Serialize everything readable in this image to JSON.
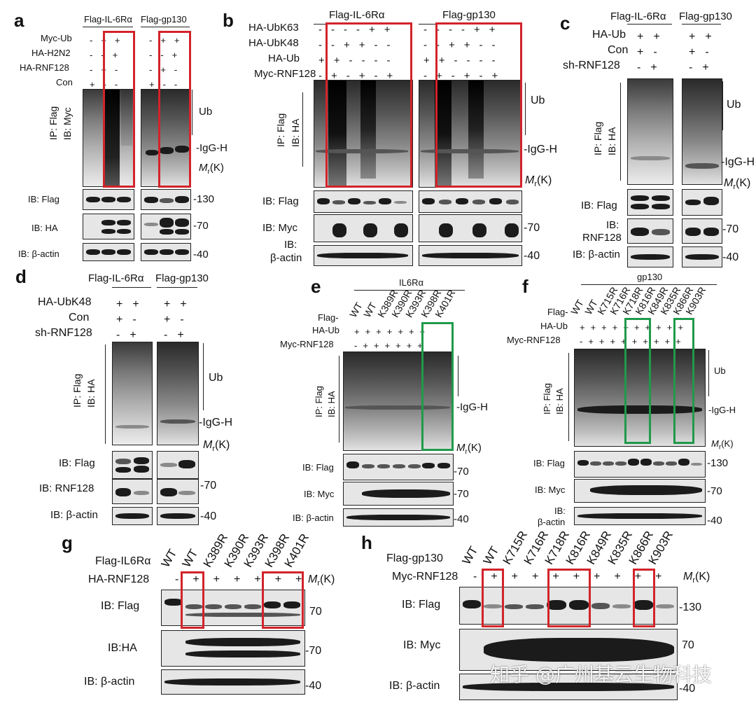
{
  "panels": {
    "a": "a",
    "b": "b",
    "c": "c",
    "d": "d",
    "e": "e",
    "f": "f",
    "g": "g",
    "h": "h"
  },
  "common": {
    "flag_il6ra": "Flag-IL-6Rα",
    "flag_gp130": "Flag-gp130",
    "ub": "Ub",
    "igg": "-IgG-H",
    "mr": "M",
    "mr_sub": "r",
    "mr_k": "(K)",
    "ip": "IP:",
    "ip_flag": "Flag",
    "ib": "IB:",
    "ib_myc": "Myc",
    "ib_ha": "HA",
    "ib_flag": "IB:  Flag",
    "ib_ha_row": "IB:  HA",
    "ib_actin": "IB:  β-actin",
    "ib_myc_row": "IB:  Myc",
    "ib_rnf128": "IB:  RNF128",
    "ib_actin_split1": "IB:",
    "ib_actin_split2": "β-actin",
    "ib_rnf_split1": "IB:",
    "ib_rnf_split2": "RNF128",
    "m130": "-130",
    "m70": "-70",
    "m40": "-40",
    "plus": "+",
    "minus": "-"
  },
  "a": {
    "rows": [
      "Myc-Ub",
      "HA-H2N2",
      "HA-RNF128",
      "Con"
    ]
  },
  "b": {
    "rows": [
      "HA-UbK63",
      "HA-UbK48",
      "HA-Ub",
      "Myc-RNF128"
    ]
  },
  "c": {
    "rows": [
      "HA-Ub",
      "Con",
      "sh-RNF128"
    ]
  },
  "d": {
    "rows": [
      "HA-UbK48",
      "Con",
      "sh-RNF128"
    ]
  },
  "e": {
    "group": "IL6Rα",
    "flag": "Flag-",
    "ha_ub": "HA-Ub",
    "myc": "Myc-RNF128",
    "lanes": [
      "WT",
      "WT",
      "K389R",
      "K390R",
      "K393R",
      "K398R",
      "K401R"
    ],
    "ib_flag": "IB: Flag",
    "ib_myc": "IB: Myc",
    "ib_actin": "IB: β-actin"
  },
  "f": {
    "group": "gp130",
    "flag": "Flag-",
    "ha_ub": "HA-Ub",
    "myc": "Myc-RNF128",
    "lanes": [
      "WT",
      "WT",
      "K715R",
      "K716R",
      "K718R",
      "K816R",
      "K849R",
      "K835R",
      "K866R",
      "K903R"
    ],
    "ib_flag": "IB: Flag",
    "ib_myc": "IB: Myc",
    "ib_actin1": "IB:",
    "ib_actin2": "β-actin"
  },
  "g": {
    "flag": "Flag-IL6Rα",
    "ha": "HA-RNF128",
    "lanes": [
      "WT",
      "WT",
      "K389R",
      "K390R",
      "K393R",
      "K398R",
      "K401R"
    ],
    "ib_flag": "IB:  Flag",
    "ib_ha": "IB:HA",
    "ib_actin": "IB:  β-actin",
    "m70": "70",
    "m70b": "-70",
    "m40": "-40"
  },
  "h": {
    "flag": "Flag-gp130",
    "myc": "Myc-RNF128",
    "lanes": [
      "WT",
      "WT",
      "K715R",
      "K716R",
      "K718R",
      "K816R",
      "K849R",
      "K835R",
      "K866R",
      "K903R"
    ],
    "ib_flag": "IB:  Flag",
    "ib_myc": "IB:  Myc",
    "ib_actin": "IB:  β-actin",
    "m130": "-130",
    "m70": "70",
    "m40": "-40"
  },
  "watermark": "知乎 @广州基云生物科技",
  "colors": {
    "red": "#d2232a",
    "green": "#1f9a4a"
  }
}
